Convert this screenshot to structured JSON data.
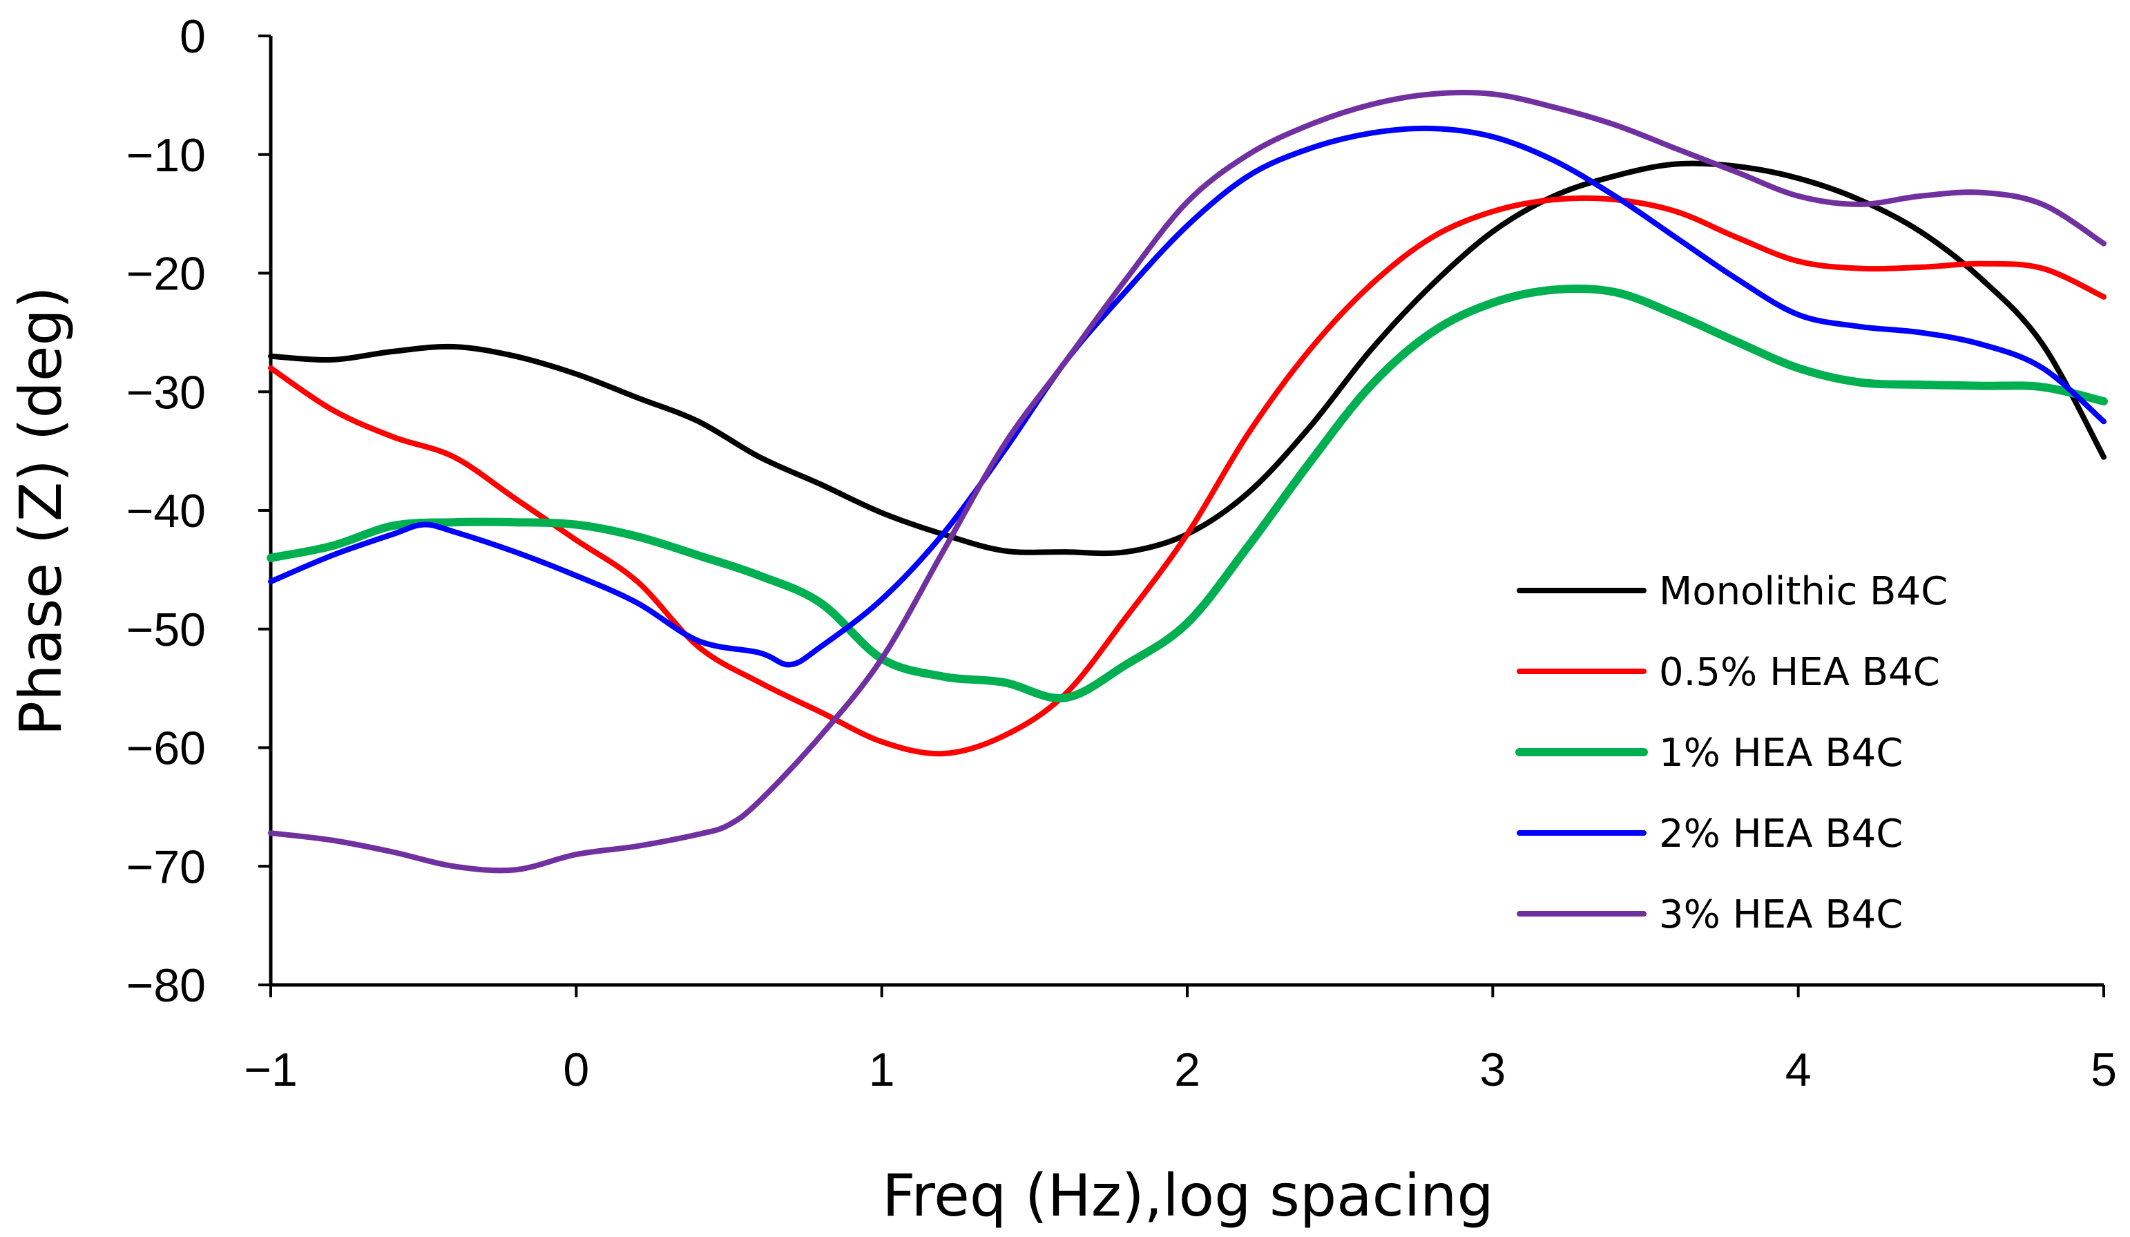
{
  "chart_data": {
    "type": "line",
    "title": "",
    "xlabel": "Freq (Hz),log spacing",
    "ylabel": "Phase (Z) (deg)",
    "xlim": [
      -1,
      5
    ],
    "ylim": [
      -80,
      0
    ],
    "xticks": [
      -1,
      0,
      1,
      2,
      3,
      4,
      5
    ],
    "yticks": [
      0,
      -10,
      -20,
      -30,
      -40,
      -50,
      -60,
      -70,
      -80
    ],
    "xtick_labels": [
      "−1",
      "0",
      "1",
      "2",
      "3",
      "4",
      "5"
    ],
    "ytick_labels": [
      "0",
      "−10",
      "−20",
      "−30",
      "−40",
      "−50",
      "−60",
      "−70",
      "−80"
    ],
    "grid": false,
    "legend_position": "right",
    "series": [
      {
        "name": "Monolithic B4C",
        "color": "#000000",
        "points": [
          [
            -1,
            -27
          ],
          [
            -0.8,
            -27.3
          ],
          [
            -0.6,
            -26.6
          ],
          [
            -0.4,
            -26.2
          ],
          [
            -0.2,
            -27
          ],
          [
            0,
            -28.5
          ],
          [
            0.2,
            -30.5
          ],
          [
            0.4,
            -32.5
          ],
          [
            0.6,
            -35.5
          ],
          [
            0.8,
            -37.8
          ],
          [
            1,
            -40.2
          ],
          [
            1.2,
            -42
          ],
          [
            1.4,
            -43.4
          ],
          [
            1.6,
            -43.5
          ],
          [
            1.8,
            -43.5
          ],
          [
            2,
            -42
          ],
          [
            2.2,
            -38.5
          ],
          [
            2.4,
            -33
          ],
          [
            2.6,
            -26.5
          ],
          [
            2.8,
            -21
          ],
          [
            3,
            -16.5
          ],
          [
            3.2,
            -13.5
          ],
          [
            3.4,
            -11.8
          ],
          [
            3.6,
            -10.8
          ],
          [
            3.8,
            -11
          ],
          [
            4,
            -12
          ],
          [
            4.2,
            -13.8
          ],
          [
            4.4,
            -16.5
          ],
          [
            4.6,
            -20.5
          ],
          [
            4.8,
            -26
          ],
          [
            5,
            -35.5
          ]
        ]
      },
      {
        "name": "0.5% HEA B4C",
        "color": "#ff0000",
        "points": [
          [
            -1,
            -28
          ],
          [
            -0.8,
            -31.5
          ],
          [
            -0.6,
            -33.8
          ],
          [
            -0.4,
            -35.5
          ],
          [
            -0.2,
            -39
          ],
          [
            0,
            -42.5
          ],
          [
            0.2,
            -46
          ],
          [
            0.4,
            -51.5
          ],
          [
            0.6,
            -54.5
          ],
          [
            0.8,
            -57
          ],
          [
            1,
            -59.5
          ],
          [
            1.2,
            -60.5
          ],
          [
            1.4,
            -59
          ],
          [
            1.6,
            -55.5
          ],
          [
            1.8,
            -49
          ],
          [
            2,
            -42
          ],
          [
            2.2,
            -33.5
          ],
          [
            2.4,
            -26.5
          ],
          [
            2.6,
            -21
          ],
          [
            2.8,
            -17
          ],
          [
            3,
            -14.8
          ],
          [
            3.2,
            -13.8
          ],
          [
            3.4,
            -13.8
          ],
          [
            3.6,
            -14.8
          ],
          [
            3.8,
            -17
          ],
          [
            4,
            -19
          ],
          [
            4.2,
            -19.6
          ],
          [
            4.4,
            -19.5
          ],
          [
            4.6,
            -19.2
          ],
          [
            4.8,
            -19.6
          ],
          [
            5,
            -22
          ]
        ]
      },
      {
        "name": "1% HEA B4C",
        "color": "#00b050",
        "points": [
          [
            -1,
            -44
          ],
          [
            -0.8,
            -43
          ],
          [
            -0.6,
            -41.3
          ],
          [
            -0.4,
            -41
          ],
          [
            -0.2,
            -41
          ],
          [
            0,
            -41.2
          ],
          [
            0.2,
            -42.2
          ],
          [
            0.4,
            -43.8
          ],
          [
            0.6,
            -45.5
          ],
          [
            0.8,
            -47.8
          ],
          [
            1,
            -52.5
          ],
          [
            1.2,
            -54
          ],
          [
            1.4,
            -54.5
          ],
          [
            1.6,
            -55.8
          ],
          [
            1.8,
            -53
          ],
          [
            2,
            -49.5
          ],
          [
            2.2,
            -43
          ],
          [
            2.4,
            -36
          ],
          [
            2.6,
            -29.5
          ],
          [
            2.8,
            -25
          ],
          [
            3,
            -22.5
          ],
          [
            3.2,
            -21.4
          ],
          [
            3.4,
            -21.6
          ],
          [
            3.6,
            -23.5
          ],
          [
            3.8,
            -25.8
          ],
          [
            4,
            -28
          ],
          [
            4.2,
            -29.2
          ],
          [
            4.4,
            -29.4
          ],
          [
            4.6,
            -29.5
          ],
          [
            4.8,
            -29.6
          ],
          [
            5,
            -30.8
          ]
        ]
      },
      {
        "name": "2% HEA B4C",
        "color": "#0000ff",
        "points": [
          [
            -1,
            -46
          ],
          [
            -0.8,
            -43.8
          ],
          [
            -0.6,
            -42
          ],
          [
            -0.5,
            -41.2
          ],
          [
            -0.4,
            -41.8
          ],
          [
            -0.2,
            -43.5
          ],
          [
            0,
            -45.5
          ],
          [
            0.2,
            -47.8
          ],
          [
            0.4,
            -51
          ],
          [
            0.6,
            -52
          ],
          [
            0.7,
            -53
          ],
          [
            0.8,
            -51.5
          ],
          [
            1,
            -47.5
          ],
          [
            1.2,
            -42
          ],
          [
            1.4,
            -35
          ],
          [
            1.6,
            -27.5
          ],
          [
            1.8,
            -21.5
          ],
          [
            2,
            -16
          ],
          [
            2.2,
            -11.8
          ],
          [
            2.4,
            -9.5
          ],
          [
            2.6,
            -8.2
          ],
          [
            2.8,
            -7.8
          ],
          [
            3,
            -8.5
          ],
          [
            3.2,
            -10.5
          ],
          [
            3.4,
            -13.5
          ],
          [
            3.6,
            -17
          ],
          [
            3.8,
            -20.5
          ],
          [
            4,
            -23.5
          ],
          [
            4.2,
            -24.5
          ],
          [
            4.4,
            -25
          ],
          [
            4.6,
            -26
          ],
          [
            4.8,
            -28
          ],
          [
            5,
            -32.5
          ]
        ]
      },
      {
        "name": "3% HEA B4C",
        "color": "#7030a0",
        "points": [
          [
            -1,
            -67.2
          ],
          [
            -0.8,
            -67.8
          ],
          [
            -0.6,
            -68.8
          ],
          [
            -0.4,
            -70
          ],
          [
            -0.2,
            -70.3
          ],
          [
            0,
            -69
          ],
          [
            0.2,
            -68.3
          ],
          [
            0.4,
            -67.3
          ],
          [
            0.5,
            -66.5
          ],
          [
            0.6,
            -64.5
          ],
          [
            0.8,
            -59
          ],
          [
            1,
            -52.5
          ],
          [
            1.2,
            -43.5
          ],
          [
            1.4,
            -34.5
          ],
          [
            1.6,
            -27.5
          ],
          [
            1.8,
            -20.5
          ],
          [
            2,
            -14
          ],
          [
            2.2,
            -10
          ],
          [
            2.4,
            -7.5
          ],
          [
            2.6,
            -5.8
          ],
          [
            2.8,
            -4.9
          ],
          [
            3,
            -4.9
          ],
          [
            3.2,
            -6
          ],
          [
            3.4,
            -7.5
          ],
          [
            3.6,
            -9.5
          ],
          [
            3.8,
            -11.5
          ],
          [
            4,
            -13.5
          ],
          [
            4.2,
            -14.2
          ],
          [
            4.4,
            -13.5
          ],
          [
            4.6,
            -13.2
          ],
          [
            4.8,
            -14.2
          ],
          [
            5,
            -17.5
          ]
        ]
      }
    ]
  }
}
